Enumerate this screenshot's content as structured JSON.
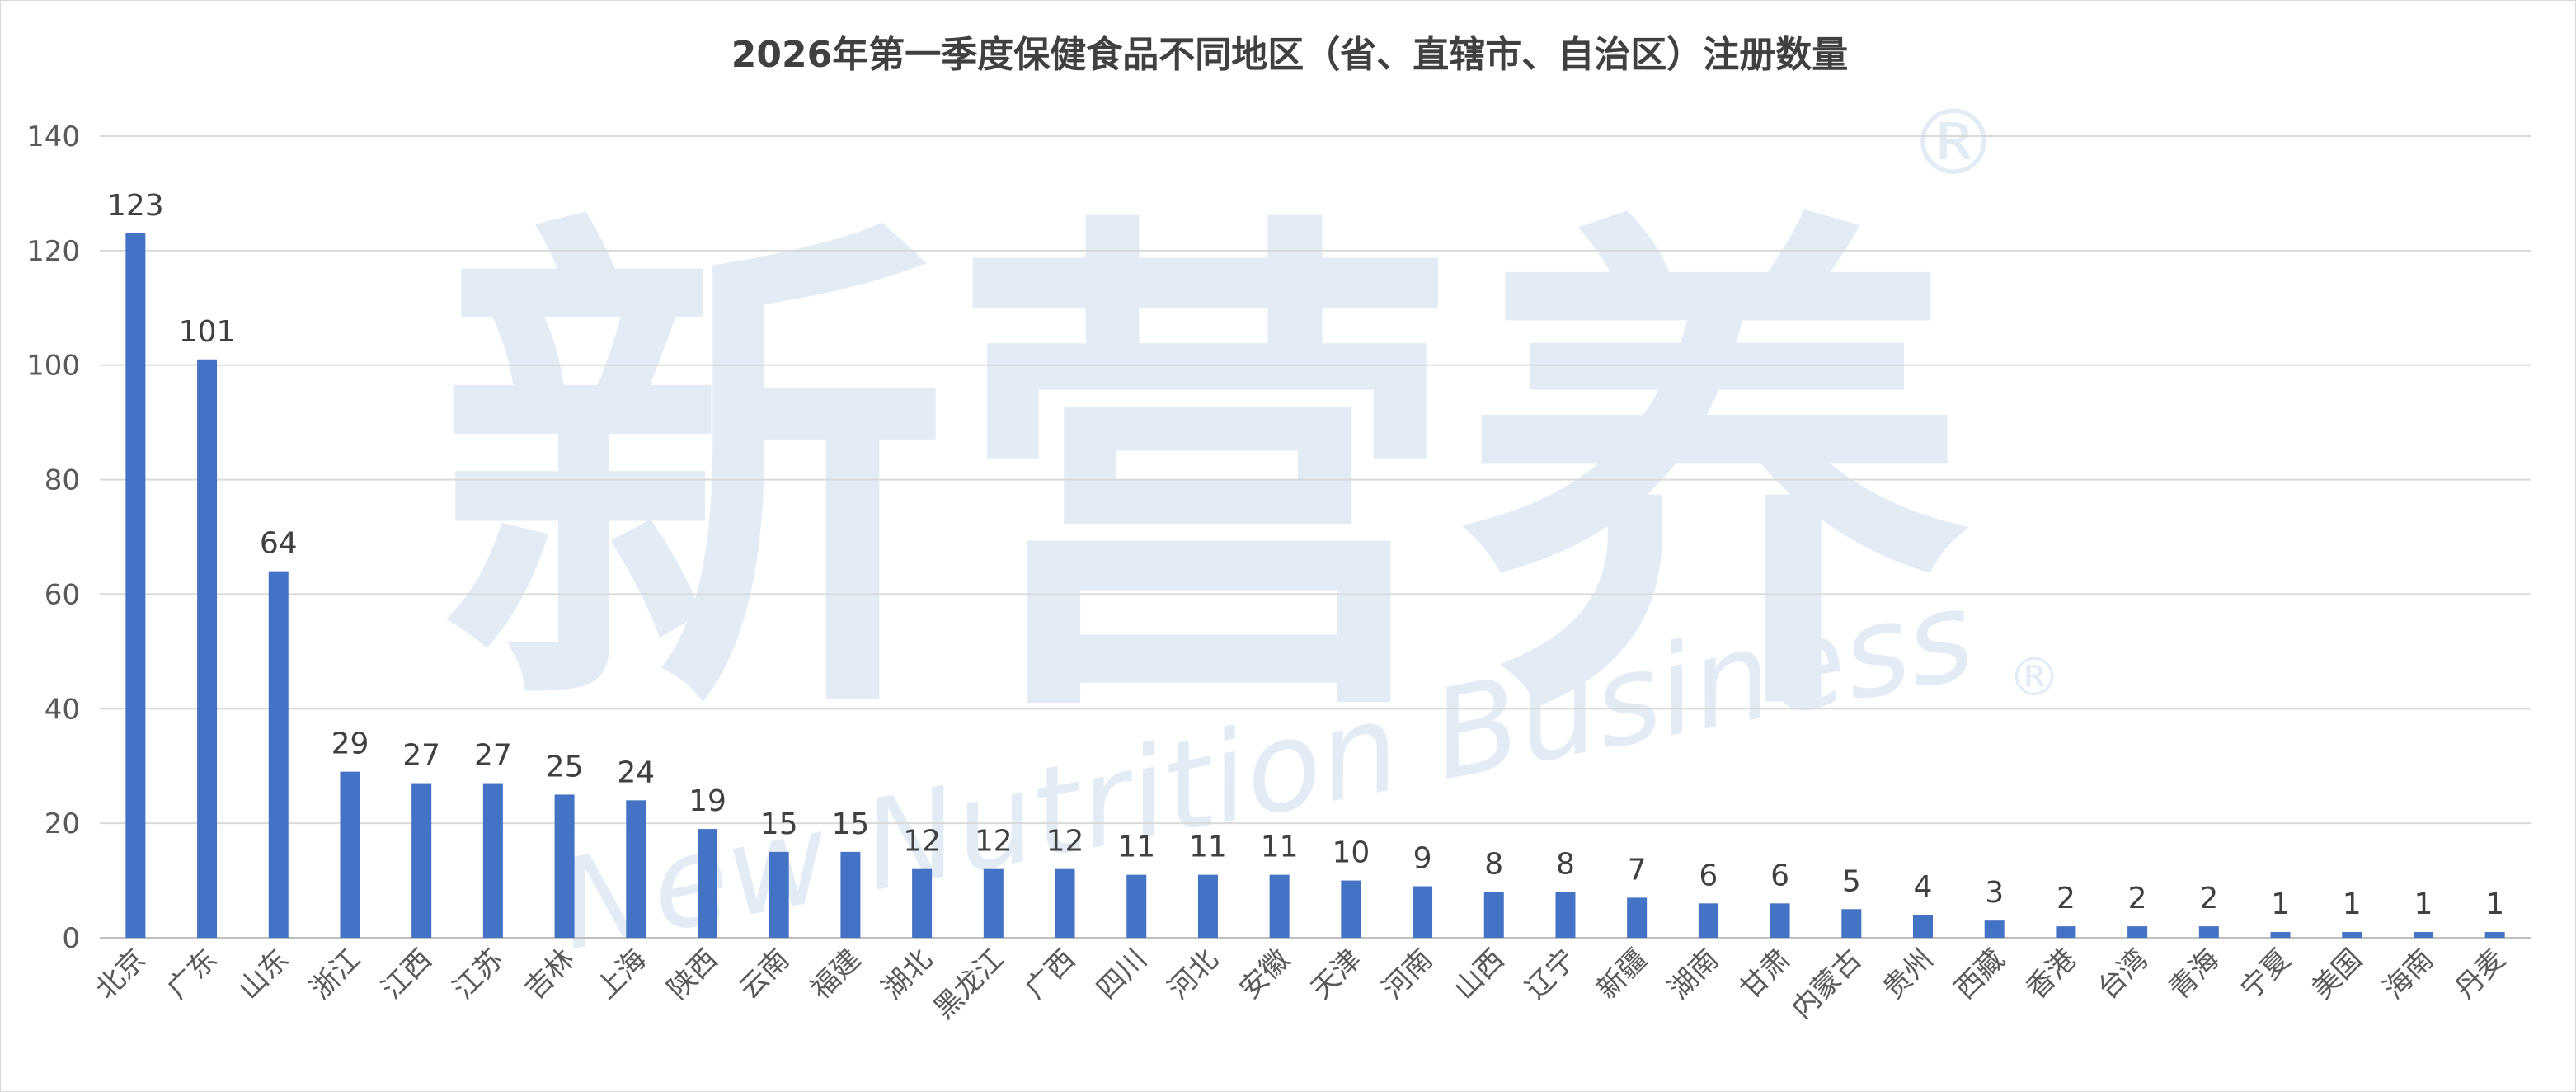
{
  "chart_data": {
    "type": "bar",
    "title": "2026年第一季度保健食品不同地区（省、直辖市、自治区）注册数量",
    "xlabel": "",
    "ylabel": "",
    "ylim": [
      0,
      140
    ],
    "yticks": [
      0,
      20,
      40,
      60,
      80,
      100,
      120,
      140
    ],
    "grid": true,
    "legend": "none",
    "bar_color": "#4472C4",
    "categories": [
      "北京",
      "广东",
      "山东",
      "浙江",
      "江西",
      "江苏",
      "吉林",
      "上海",
      "陕西",
      "云南",
      "福建",
      "湖北",
      "黑龙江",
      "广西",
      "四川",
      "河北",
      "安徽",
      "天津",
      "河南",
      "山西",
      "辽宁",
      "新疆",
      "湖南",
      "甘肃",
      "内蒙古",
      "贵州",
      "西藏",
      "香港",
      "台湾",
      "青海",
      "宁夏",
      "美国",
      "海南",
      "丹麦"
    ],
    "values": [
      123,
      101,
      64,
      29,
      27,
      27,
      25,
      24,
      19,
      15,
      15,
      12,
      12,
      12,
      11,
      11,
      11,
      10,
      9,
      8,
      8,
      7,
      6,
      6,
      5,
      4,
      3,
      2,
      2,
      2,
      1,
      1,
      1,
      1
    ]
  },
  "watermark": {
    "brand_cn": "新营养",
    "brand_en": "New Nutrition Business",
    "registered_mark": "®",
    "color": "#E3ECF5"
  }
}
